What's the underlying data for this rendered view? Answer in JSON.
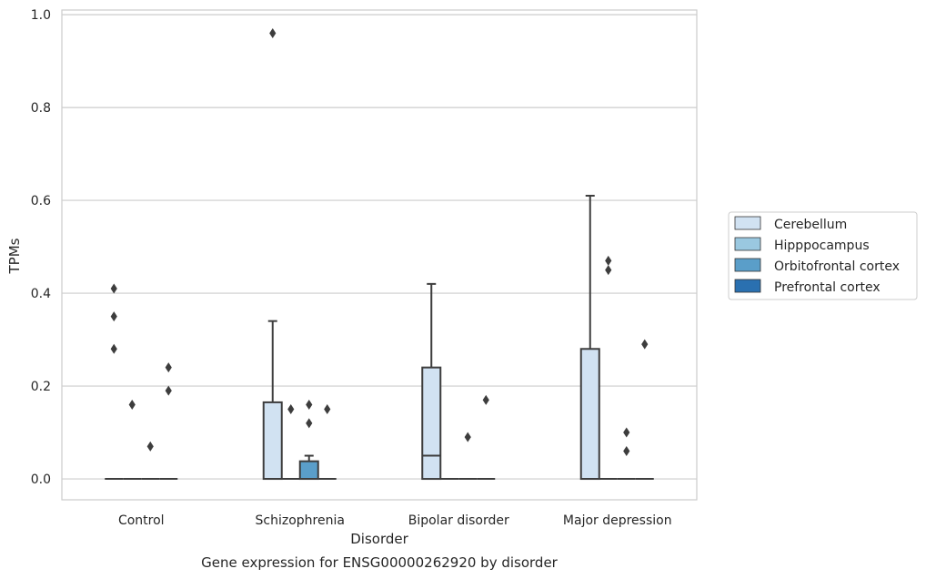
{
  "chart_data": {
    "type": "box",
    "title": "",
    "caption": "Gene expression for ENSG00000262920 by disorder",
    "xlabel": "Disorder",
    "ylabel": "TPMs",
    "ylim": [
      -0.045,
      1.01
    ],
    "yticks": [
      "0.0",
      "0.2",
      "0.4",
      "0.6",
      "0.8",
      "1.0"
    ],
    "categories": [
      "Control",
      "Schizophrenia",
      "Bipolar disorder",
      "Major depression"
    ],
    "grid": true,
    "legend_position": "right",
    "series": [
      {
        "name": "Cerebellum",
        "color": "#d1e2f2",
        "boxes": [
          {
            "q1": 0,
            "median": 0,
            "q3": 0,
            "whisker_low": 0,
            "whisker_high": 0,
            "outliers": [
              0.41,
              0.35,
              0.28
            ]
          },
          {
            "q1": 0,
            "median": 0,
            "q3": 0.165,
            "whisker_low": 0,
            "whisker_high": 0.34,
            "outliers": [
              0.96
            ]
          },
          {
            "q1": 0,
            "median": 0.05,
            "q3": 0.24,
            "whisker_low": 0,
            "whisker_high": 0.42,
            "outliers": []
          },
          {
            "q1": 0,
            "median": 0,
            "q3": 0.28,
            "whisker_low": 0,
            "whisker_high": 0.61,
            "outliers": []
          }
        ]
      },
      {
        "name": "Hipppocampus",
        "color": "#9ac8e0",
        "boxes": [
          {
            "q1": 0,
            "median": 0,
            "q3": 0,
            "whisker_low": 0,
            "whisker_high": 0,
            "outliers": [
              0.16
            ]
          },
          {
            "q1": 0,
            "median": 0,
            "q3": 0,
            "whisker_low": 0,
            "whisker_high": 0,
            "outliers": [
              0.15
            ]
          },
          {
            "q1": 0,
            "median": 0,
            "q3": 0,
            "whisker_low": 0,
            "whisker_high": 0,
            "outliers": []
          },
          {
            "q1": 0,
            "median": 0,
            "q3": 0,
            "whisker_low": 0,
            "whisker_high": 0,
            "outliers": [
              0.47,
              0.45
            ]
          }
        ]
      },
      {
        "name": "Orbitofrontal cortex",
        "color": "#5a9ec9",
        "boxes": [
          {
            "q1": 0,
            "median": 0,
            "q3": 0,
            "whisker_low": 0,
            "whisker_high": 0,
            "outliers": [
              0.07
            ]
          },
          {
            "q1": 0,
            "median": 0,
            "q3": 0.038,
            "whisker_low": 0,
            "whisker_high": 0.05,
            "outliers": [
              0.16,
              0.12
            ]
          },
          {
            "q1": 0,
            "median": 0,
            "q3": 0,
            "whisker_low": 0,
            "whisker_high": 0,
            "outliers": [
              0.09
            ]
          },
          {
            "q1": 0,
            "median": 0,
            "q3": 0,
            "whisker_low": 0,
            "whisker_high": 0,
            "outliers": [
              0.1,
              0.06
            ]
          }
        ]
      },
      {
        "name": "Prefrontal cortex",
        "color": "#2a70b0",
        "boxes": [
          {
            "q1": 0,
            "median": 0,
            "q3": 0,
            "whisker_low": 0,
            "whisker_high": 0,
            "outliers": [
              0.24,
              0.19
            ]
          },
          {
            "q1": 0,
            "median": 0,
            "q3": 0,
            "whisker_low": 0,
            "whisker_high": 0,
            "outliers": [
              0.15
            ]
          },
          {
            "q1": 0,
            "median": 0,
            "q3": 0,
            "whisker_low": 0,
            "whisker_high": 0,
            "outliers": [
              0.17
            ]
          },
          {
            "q1": 0,
            "median": 0,
            "q3": 0,
            "whisker_low": 0,
            "whisker_high": 0,
            "outliers": [
              0.29
            ]
          }
        ]
      }
    ]
  }
}
